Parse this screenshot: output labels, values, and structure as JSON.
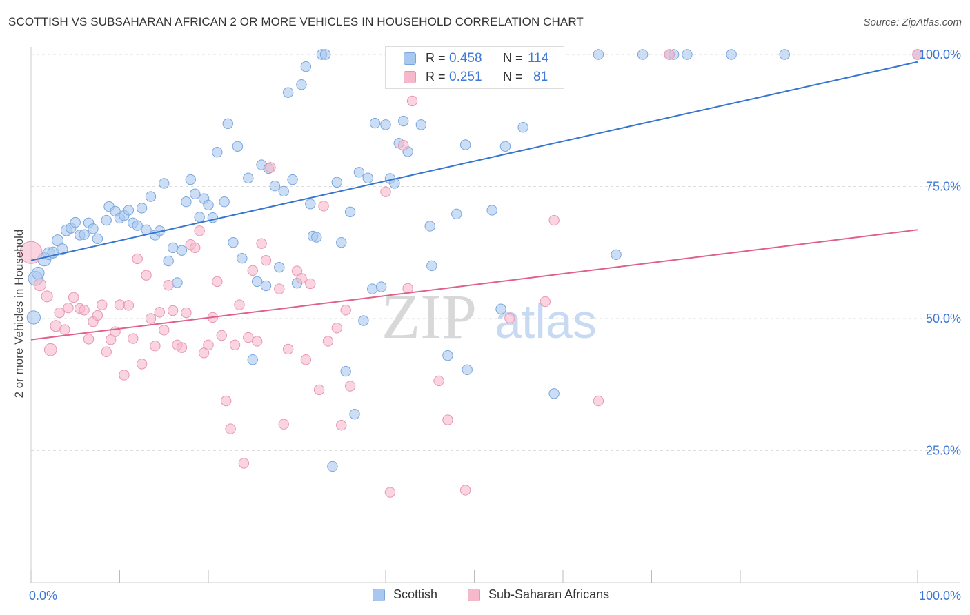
{
  "header": {
    "title": "SCOTTISH VS SUBSAHARAN AFRICAN 2 OR MORE VEHICLES IN HOUSEHOLD CORRELATION CHART",
    "source": "Source: ZipAtlas.com"
  },
  "watermark": {
    "zip": "ZIP",
    "atlas": "atlas"
  },
  "legend_stats": [
    {
      "r_label": "R =",
      "r_value": "0.458",
      "n_label": "N =",
      "n_value": "114"
    },
    {
      "r_label": "R =",
      "r_value": "0.251",
      "n_label": "N =",
      "n_value": "81"
    }
  ],
  "colors": {
    "blue_fill": "#a8c8f0",
    "blue_stroke": "#7aa6dc",
    "blue_line": "#3676d0",
    "pink_fill": "#f6b8cb",
    "pink_stroke": "#e896b0",
    "pink_line": "#e0608a",
    "accent_text": "#3d78d8",
    "grid": "#dddddd"
  },
  "chart_data": {
    "type": "scatter",
    "title": "SCOTTISH VS SUBSAHARAN AFRICAN 2 OR MORE VEHICLES IN HOUSEHOLD CORRELATION CHART",
    "ylabel": "2 or more Vehicles in Household",
    "xlabel": "",
    "xlim": [
      0,
      100
    ],
    "ylim": [
      0,
      100
    ],
    "x_tick_labels": [
      "0.0%",
      "100.0%"
    ],
    "y_tick_labels": [
      "25.0%",
      "50.0%",
      "75.0%",
      "100.0%"
    ],
    "y_ticks": [
      25,
      50,
      75,
      100
    ],
    "legend_position": "bottom",
    "grid": true,
    "series": [
      {
        "name": "Scottish",
        "r": 0.458,
        "n": 114,
        "trend": {
          "x0": 0,
          "y0": 61.0,
          "x1": 100,
          "y1": 98.6
        },
        "points": [
          [
            0.3,
            50.2,
            12
          ],
          [
            0.5,
            57.6,
            13
          ],
          [
            0.8,
            58.6,
            11
          ],
          [
            1.5,
            61.2,
            12
          ],
          [
            2,
            62.3,
            11
          ],
          [
            2.5,
            62.5,
            10
          ],
          [
            3,
            64.8,
            10
          ],
          [
            3.5,
            63.1,
            10
          ],
          [
            4,
            66.7,
            10
          ],
          [
            4.5,
            67.1,
            9
          ],
          [
            5,
            68.2,
            9
          ],
          [
            5.5,
            65.8,
            9
          ],
          [
            6,
            65.9,
            9
          ],
          [
            6.5,
            68.1,
            9
          ],
          [
            7,
            67.0,
            9
          ],
          [
            7.5,
            65.1,
            9
          ],
          [
            8.5,
            68.6,
            9
          ],
          [
            8.8,
            71.2,
            9
          ],
          [
            9.5,
            70.3,
            9
          ],
          [
            10,
            69.0,
            9
          ],
          [
            10.5,
            69.5,
            9
          ],
          [
            11,
            70.5,
            9
          ],
          [
            11.5,
            68.1,
            9
          ],
          [
            12,
            67.6,
            9
          ],
          [
            12.5,
            70.9,
            9
          ],
          [
            13,
            66.8,
            9
          ],
          [
            13.5,
            73.1,
            9
          ],
          [
            14,
            65.8,
            9
          ],
          [
            14.5,
            66.6,
            9
          ],
          [
            15,
            75.6,
            9
          ],
          [
            15.5,
            60.9,
            9
          ],
          [
            16,
            63.4,
            9
          ],
          [
            16.5,
            56.8,
            9
          ],
          [
            17,
            62.9,
            9
          ],
          [
            17.5,
            72.1,
            9
          ],
          [
            18,
            76.3,
            9
          ],
          [
            18.5,
            73.6,
            9
          ],
          [
            19,
            69.2,
            9
          ],
          [
            19.5,
            72.7,
            9
          ],
          [
            20,
            71.5,
            9
          ],
          [
            20.5,
            69.1,
            9
          ],
          [
            21,
            81.5,
            9
          ],
          [
            21.8,
            72.1,
            9
          ],
          [
            22.2,
            86.9,
            9
          ],
          [
            22.8,
            64.4,
            9
          ],
          [
            23.3,
            82.6,
            9
          ],
          [
            23.8,
            61.4,
            9
          ],
          [
            24.5,
            76.6,
            9
          ],
          [
            25,
            42.2,
            9
          ],
          [
            25.5,
            57.0,
            9
          ],
          [
            26,
            79.1,
            9
          ],
          [
            26.5,
            56.2,
            9
          ],
          [
            26.8,
            78.4,
            9
          ],
          [
            27.5,
            75.1,
            9
          ],
          [
            28,
            59.7,
            9
          ],
          [
            28.5,
            74.1,
            9
          ],
          [
            29,
            92.8,
            9
          ],
          [
            29.5,
            76.3,
            9
          ],
          [
            30,
            56.7,
            9
          ],
          [
            30.5,
            94.3,
            9
          ],
          [
            31,
            97.7,
            9
          ],
          [
            31.5,
            71.7,
            9
          ],
          [
            31.8,
            65.6,
            9
          ],
          [
            32.2,
            65.4,
            9
          ],
          [
            32.8,
            100,
            9
          ],
          [
            33.2,
            100,
            9
          ],
          [
            34,
            22.0,
            9
          ],
          [
            34.5,
            75.8,
            9
          ],
          [
            35,
            64.4,
            9
          ],
          [
            35.5,
            40.0,
            9
          ],
          [
            36,
            70.2,
            9
          ],
          [
            36.5,
            31.9,
            9
          ],
          [
            37,
            77.7,
            9
          ],
          [
            37.5,
            49.6,
            9
          ],
          [
            38,
            76.6,
            9
          ],
          [
            38.5,
            55.6,
            9
          ],
          [
            38.8,
            87.0,
            9
          ],
          [
            39.5,
            56.0,
            9
          ],
          [
            40,
            86.7,
            9
          ],
          [
            40.5,
            76.5,
            9
          ],
          [
            41,
            75.6,
            9
          ],
          [
            41.5,
            83.2,
            9
          ],
          [
            42,
            87.4,
            9
          ],
          [
            42.5,
            81.6,
            9
          ],
          [
            43,
            100,
            9
          ],
          [
            44,
            86.7,
            9
          ],
          [
            45,
            67.5,
            9
          ],
          [
            45.2,
            60.0,
            9
          ],
          [
            47,
            43.0,
            9
          ],
          [
            48,
            69.8,
            9
          ],
          [
            49,
            82.9,
            9
          ],
          [
            49.2,
            40.3,
            9
          ],
          [
            50,
            100,
            9
          ],
          [
            52,
            70.5,
            9
          ],
          [
            53,
            51.8,
            9
          ],
          [
            53.5,
            82.6,
            9
          ],
          [
            55,
            100,
            9
          ],
          [
            55.5,
            86.2,
            9
          ],
          [
            56,
            100,
            9
          ],
          [
            57,
            100,
            9
          ],
          [
            59,
            35.8,
            9
          ],
          [
            64,
            100,
            9
          ],
          [
            66,
            62.1,
            9
          ],
          [
            69,
            100,
            9
          ],
          [
            72,
            100,
            9
          ],
          [
            72.5,
            100,
            9
          ],
          [
            74,
            100,
            9
          ],
          [
            79,
            100,
            9
          ],
          [
            85,
            100,
            9
          ],
          [
            100,
            100,
            9
          ]
        ]
      },
      {
        "name": "Sub-Saharan Africans",
        "r": 0.251,
        "n": 81,
        "trend": {
          "x0": 0,
          "y0": 46.0,
          "x1": 100,
          "y1": 66.8
        },
        "points": [
          [
            0,
            62.5,
            20
          ],
          [
            1,
            56.4,
            11
          ],
          [
            1.8,
            54.2,
            10
          ],
          [
            2.2,
            44.1,
            11
          ],
          [
            2.8,
            48.6,
            10
          ],
          [
            3.2,
            51.1,
            9
          ],
          [
            3.8,
            47.9,
            9
          ],
          [
            4.2,
            52.0,
            9
          ],
          [
            4.8,
            54.0,
            9
          ],
          [
            5.5,
            51.9,
            9
          ],
          [
            6,
            51.6,
            9
          ],
          [
            6.5,
            46.1,
            9
          ],
          [
            7,
            49.4,
            9
          ],
          [
            7.5,
            50.6,
            9
          ],
          [
            8,
            52.6,
            9
          ],
          [
            8.5,
            43.7,
            9
          ],
          [
            9,
            46.0,
            9
          ],
          [
            9.5,
            47.5,
            9
          ],
          [
            10,
            52.6,
            9
          ],
          [
            10.5,
            39.3,
            9
          ],
          [
            11,
            52.5,
            9
          ],
          [
            11.5,
            46.2,
            9
          ],
          [
            12,
            61.3,
            9
          ],
          [
            12.5,
            41.4,
            9
          ],
          [
            13,
            58.2,
            9
          ],
          [
            13.5,
            50.0,
            9
          ],
          [
            14,
            44.8,
            9
          ],
          [
            14.5,
            51.2,
            9
          ],
          [
            15,
            47.8,
            9
          ],
          [
            15.5,
            56.3,
            9
          ],
          [
            16,
            51.5,
            9
          ],
          [
            16.5,
            45.0,
            9
          ],
          [
            17,
            44.5,
            9
          ],
          [
            17.5,
            51.1,
            9
          ],
          [
            18,
            64.0,
            9
          ],
          [
            18.5,
            63.4,
            9
          ],
          [
            19,
            66.6,
            9
          ],
          [
            19.5,
            43.5,
            9
          ],
          [
            20,
            45.0,
            9
          ],
          [
            20.5,
            50.2,
            9
          ],
          [
            21,
            57.0,
            9
          ],
          [
            21.5,
            46.8,
            9
          ],
          [
            22,
            34.4,
            9
          ],
          [
            22.5,
            29.1,
            9
          ],
          [
            23,
            45.0,
            9
          ],
          [
            23.5,
            52.6,
            9
          ],
          [
            24,
            22.6,
            9
          ],
          [
            24.5,
            46.4,
            9
          ],
          [
            25,
            59.1,
            9
          ],
          [
            25.5,
            45.7,
            9
          ],
          [
            26,
            64.2,
            9
          ],
          [
            26.5,
            61.0,
            9
          ],
          [
            27,
            78.6,
            9
          ],
          [
            28,
            55.6,
            9
          ],
          [
            28.5,
            30.0,
            9
          ],
          [
            29,
            44.2,
            9
          ],
          [
            30,
            59.0,
            9
          ],
          [
            30.5,
            57.6,
            9
          ],
          [
            31,
            42.2,
            9
          ],
          [
            31.5,
            56.6,
            9
          ],
          [
            32.5,
            36.5,
            9
          ],
          [
            33,
            71.3,
            9
          ],
          [
            33.5,
            45.7,
            9
          ],
          [
            34.5,
            48.2,
            9
          ],
          [
            35,
            29.8,
            9
          ],
          [
            35.5,
            51.6,
            9
          ],
          [
            36,
            37.2,
            9
          ],
          [
            40,
            74.0,
            9
          ],
          [
            40.5,
            17.1,
            9
          ],
          [
            42,
            82.8,
            9
          ],
          [
            42.5,
            55.7,
            9
          ],
          [
            43,
            91.2,
            9
          ],
          [
            46,
            38.2,
            9
          ],
          [
            47,
            30.8,
            9
          ],
          [
            49,
            17.5,
            9
          ],
          [
            54,
            50.1,
            9
          ],
          [
            58,
            53.2,
            9
          ],
          [
            59,
            68.6,
            9
          ],
          [
            64,
            34.4,
            9
          ],
          [
            72,
            100,
            9
          ],
          [
            100,
            100,
            9
          ]
        ]
      }
    ]
  },
  "bottom_legend": [
    {
      "label": "Scottish"
    },
    {
      "label": "Sub-Saharan Africans"
    }
  ]
}
